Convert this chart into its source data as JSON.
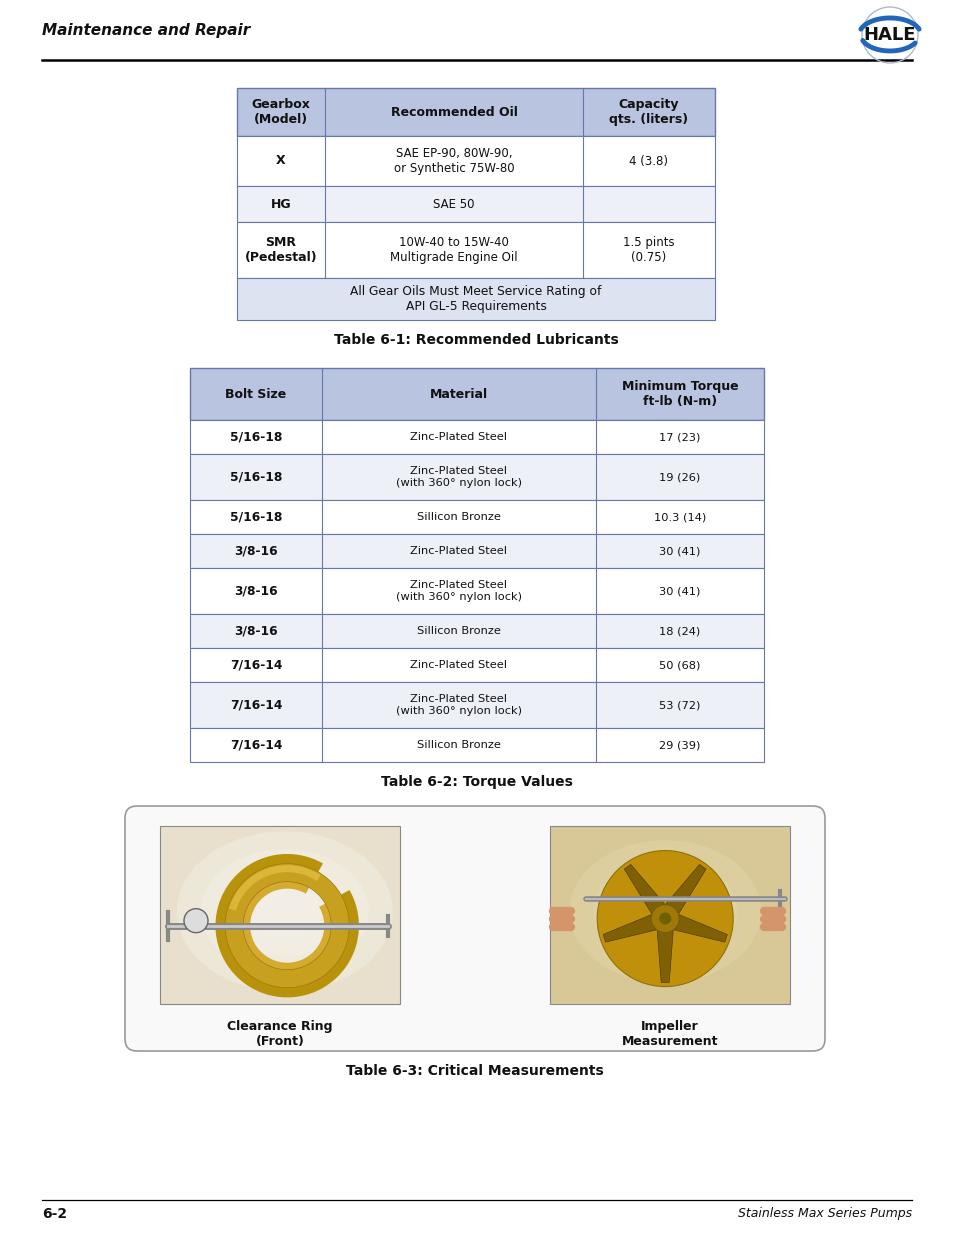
{
  "page_bg": "#ffffff",
  "header_text": "Maintenance and Repair",
  "footer_left": "6-2",
  "footer_right": "Stainless Max Series Pumps",
  "table1_caption": "Table 6-1: Recommended Lubricants",
  "table1_header": [
    "Gearbox\n(Model)",
    "Recommended Oil",
    "Capacity\nqts. (liters)"
  ],
  "table1_header_bg": "#b8c4e0",
  "table1_rows": [
    [
      "X",
      "SAE EP-90, 80W-90,\nor Synthetic 75W-80",
      "4 (3.8)"
    ],
    [
      "HG",
      "SAE 50",
      ""
    ],
    [
      "SMR\n(Pedestal)",
      "10W-40 to 15W-40\nMultigrade Engine Oil",
      "1.5 pints\n(0.75)"
    ]
  ],
  "table1_footer": "All Gear Oils Must Meet Service Rating of\nAPI GL-5 Requirements",
  "table1_footer_bg": "#dde3f0",
  "table1_row_bg_even": "#ffffff",
  "table1_row_bg_odd": "#eef0f8",
  "table2_caption": "Table 6-2: Torque Values",
  "table2_header": [
    "Bolt Size",
    "Material",
    "Minimum Torque\nft-lb (N-m)"
  ],
  "table2_header_bg": "#b8c4e0",
  "table2_rows": [
    [
      "5/16-18",
      "Zinc-Plated Steel",
      "17 (23)",
      "white"
    ],
    [
      "5/16-18",
      "Zinc-Plated Steel\n(with 360° nylon lock)",
      "19 (26)",
      "light"
    ],
    [
      "5/16-18",
      "Sillicon Bronze",
      "10.3 (14)",
      "white"
    ],
    [
      "3/8-16",
      "Zinc-Plated Steel",
      "30 (41)",
      "light"
    ],
    [
      "3/8-16",
      "Zinc-Plated Steel\n(with 360° nylon lock)",
      "30 (41)",
      "white"
    ],
    [
      "3/8-16",
      "Sillicon Bronze",
      "18 (24)",
      "light"
    ],
    [
      "7/16-14",
      "Zinc-Plated Steel",
      "50 (68)",
      "white"
    ],
    [
      "7/16-14",
      "Zinc-Plated Steel\n(with 360° nylon lock)",
      "53 (72)",
      "light"
    ],
    [
      "7/16-14",
      "Sillicon Bronze",
      "29 (39)",
      "white"
    ]
  ],
  "table2_row_bg_white": "#ffffff",
  "table2_row_bg_light": "#eef0f8",
  "table3_caption": "Table 6-3: Critical Measurements",
  "table3_label_left": "Clearance Ring\n(Front)",
  "table3_label_right": "Impeller\nMeasurement",
  "header_line_color": "#000000",
  "footer_line_color": "#000000"
}
